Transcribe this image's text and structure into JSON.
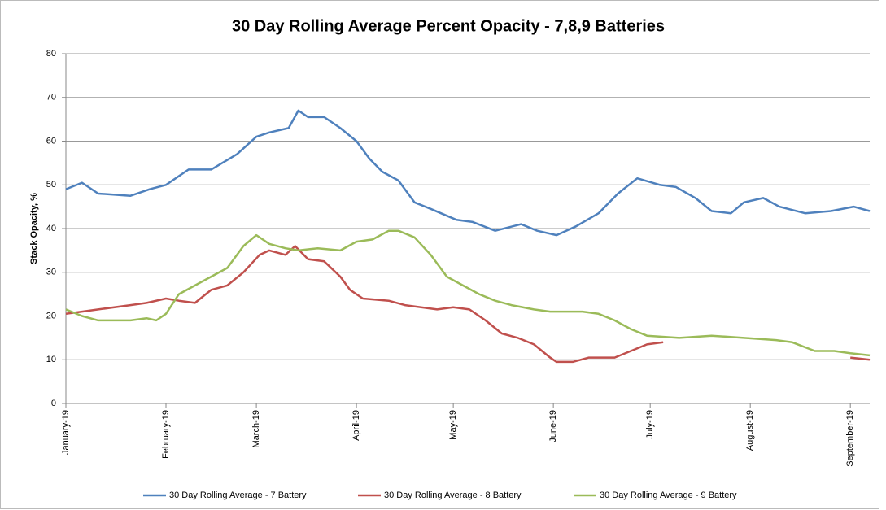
{
  "chart_data": {
    "type": "line",
    "title": "30 Day Rolling Average Percent Opacity - 7,8,9 Batteries",
    "y_label": "Stack Opacity, %",
    "xlim": [
      0,
      249
    ],
    "xticks": [
      {
        "value": 0,
        "label": "January-19"
      },
      {
        "value": 31,
        "label": "February-19"
      },
      {
        "value": 59,
        "label": "March-19"
      },
      {
        "value": 90,
        "label": "April-19"
      },
      {
        "value": 120,
        "label": "May-19"
      },
      {
        "value": 151,
        "label": "June-19"
      },
      {
        "value": 181,
        "label": "July-19"
      },
      {
        "value": 212,
        "label": "August-19"
      },
      {
        "value": 243,
        "label": "September-19"
      }
    ],
    "ylim": [
      0,
      80
    ],
    "yticks": [
      0,
      10,
      20,
      30,
      40,
      50,
      60,
      70,
      80
    ],
    "grid": true,
    "legend": "bottom",
    "series": [
      {
        "name": "30 Day Rolling Average - 7 Battery",
        "color": "#4f81bd",
        "x": [
          0,
          5,
          10,
          20,
          26,
          31,
          38,
          45,
          53,
          59,
          63,
          69,
          72,
          75,
          80,
          85,
          90,
          94,
          98,
          103,
          108,
          113,
          121,
          126,
          133,
          141,
          146,
          152,
          158,
          165,
          171,
          177,
          184,
          189,
          195,
          200,
          206,
          210,
          216,
          221,
          229,
          237,
          244,
          249
        ],
        "values": [
          49,
          50.5,
          48,
          47.5,
          49,
          50,
          53.5,
          53.5,
          57,
          61,
          62,
          63,
          67,
          65.5,
          65.5,
          63,
          60,
          56,
          53,
          51,
          46,
          44.5,
          42,
          41.5,
          39.5,
          41,
          39.5,
          38.5,
          40.5,
          43.5,
          48,
          51.5,
          50,
          49.5,
          47,
          44,
          43.5,
          46,
          47,
          45,
          43.5,
          44,
          45,
          44
        ]
      },
      {
        "name": "30 Day Rolling Average - 8 Battery",
        "color": "#c0504d",
        "x": [
          0,
          5,
          10,
          20,
          25,
          31,
          35,
          40,
          45,
          50,
          55,
          60,
          63,
          68,
          71,
          75,
          80,
          85,
          88,
          92,
          100,
          105,
          115,
          120,
          125,
          130,
          135,
          140,
          145,
          150,
          152,
          157,
          162,
          170,
          175,
          180,
          185,
          214,
          243,
          249
        ],
        "values": [
          20.5,
          21,
          21.5,
          22.5,
          23,
          24,
          23.5,
          23,
          26,
          27,
          30,
          34,
          35,
          34,
          36,
          33,
          32.5,
          29,
          26,
          24,
          23.5,
          22.5,
          21.5,
          22,
          21.5,
          19,
          16,
          15,
          13.5,
          10.5,
          9.5,
          9.5,
          10.5,
          10.5,
          12,
          13.5,
          14,
          null,
          10.5,
          10
        ]
      },
      {
        "name": "30 Day Rolling Average - 9 Battery",
        "color": "#9bbb59",
        "x": [
          0,
          5,
          10,
          15,
          20,
          25,
          28,
          31,
          35,
          40,
          45,
          50,
          55,
          59,
          63,
          68,
          72,
          78,
          85,
          90,
          95,
          100,
          103,
          108,
          113,
          118,
          123,
          128,
          133,
          138,
          145,
          150,
          160,
          165,
          170,
          175,
          180,
          190,
          200,
          210,
          220,
          225,
          232,
          238,
          243,
          249
        ],
        "values": [
          21.5,
          20,
          19,
          19,
          19,
          19.5,
          19,
          20.5,
          25,
          27,
          29,
          31,
          36,
          38.5,
          36.5,
          35.5,
          35,
          35.5,
          35,
          37,
          37.5,
          39.5,
          39.5,
          38,
          34,
          29,
          27,
          25,
          23.5,
          22.5,
          21.5,
          21,
          21,
          20.5,
          19,
          17,
          15.5,
          15,
          15.5,
          15,
          14.5,
          14,
          12,
          12,
          11.5,
          11
        ]
      }
    ]
  }
}
